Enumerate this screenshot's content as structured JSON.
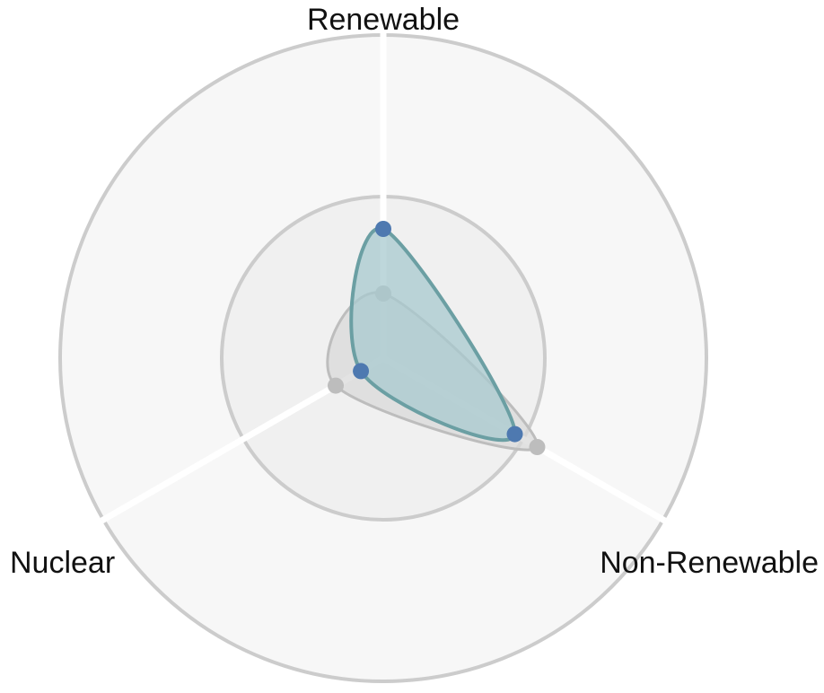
{
  "chart_data": {
    "type": "radar",
    "title": "",
    "axes": [
      "Renewable",
      "Non-Renewable",
      "Nuclear"
    ],
    "r_range": [
      0,
      100
    ],
    "ring_levels": [
      50,
      100
    ],
    "grid": true,
    "legend": "none",
    "series": [
      {
        "values": [
          20,
          55,
          17
        ],
        "color": "#bdbdbd",
        "fill": "#d9d9d9",
        "line": "#bdbdbd"
      },
      {
        "values": [
          40,
          47,
          8
        ],
        "color": "#4e79b0",
        "fill": "#a8c9cf",
        "line": "#6b9fa3"
      }
    ],
    "colors": {
      "outer_disc": "#f7f7f7",
      "inner_disc": "#f0f0f0",
      "ring": "#cccccc",
      "spoke": "#ffffff"
    }
  }
}
